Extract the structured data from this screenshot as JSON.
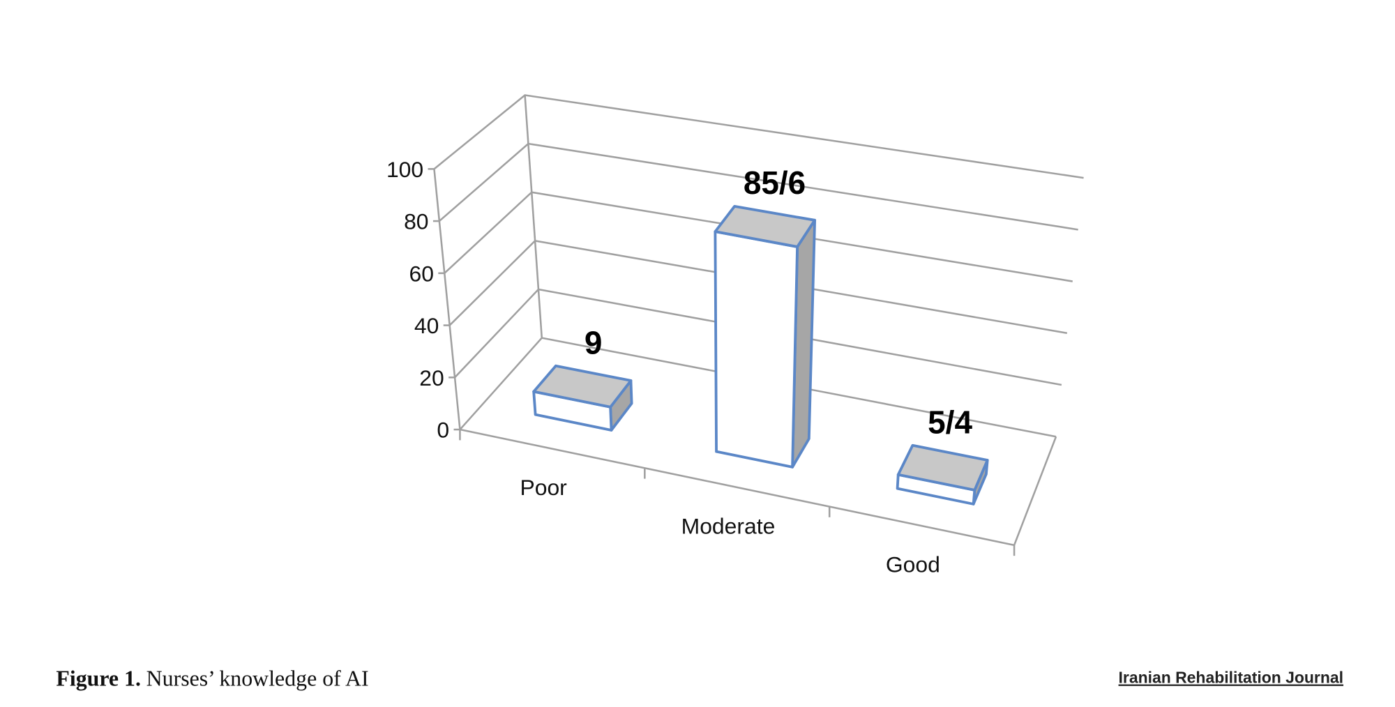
{
  "chart_data": {
    "type": "bar3d",
    "categories": [
      "Poor",
      "Moderate",
      "Good"
    ],
    "values": [
      9,
      85.6,
      5.4
    ],
    "value_labels": [
      "9",
      "85/6",
      "5/4"
    ],
    "ylim": [
      0,
      100
    ],
    "yticks": [
      0,
      20,
      40,
      60,
      80,
      100
    ],
    "grid": true,
    "colors": {
      "front": "#ffffff",
      "top": "#c8c8c8",
      "side": "#a6a6a6",
      "edge": "#5b87c7"
    }
  },
  "caption": {
    "label": "Figure 1.",
    "text": "Nurses’ knowledge of AI"
  },
  "logo": "Iranian Rehabilitation Journal"
}
